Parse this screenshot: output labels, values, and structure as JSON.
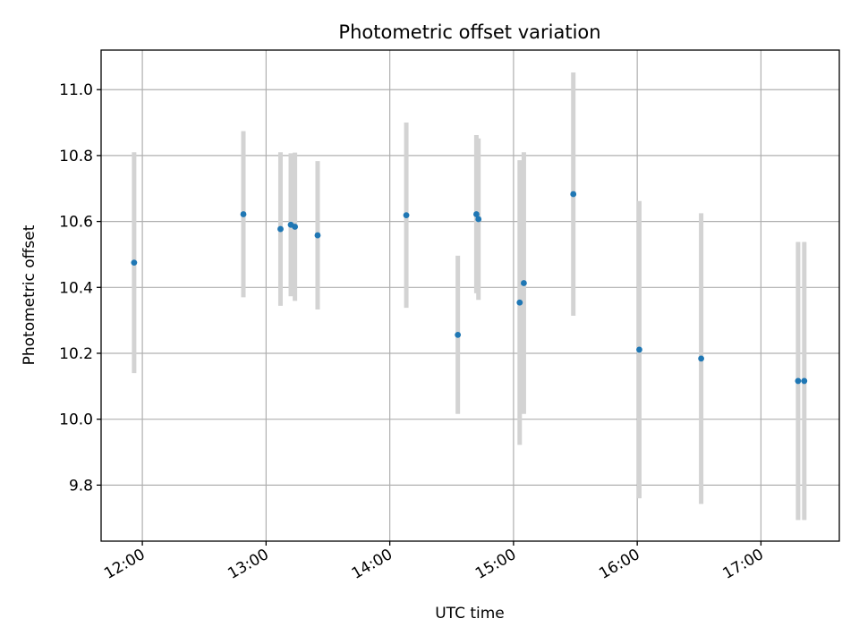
{
  "chart_data": {
    "type": "scatter",
    "title": "Photometric offset variation",
    "xlabel": "UTC time",
    "ylabel": "Photometric offset",
    "x_unit": "UTC time (HH:MM)",
    "xlim": [
      "11:40",
      "17:38"
    ],
    "ylim": [
      9.63,
      11.12
    ],
    "x_ticks": [
      "12:00",
      "13:00",
      "14:00",
      "15:00",
      "16:00",
      "17:00"
    ],
    "y_ticks": [
      9.8,
      10.0,
      10.2,
      10.4,
      10.6,
      10.8,
      11.0
    ],
    "grid": true,
    "colors": {
      "point": "#1f77b4",
      "errorbar": "#d3d3d3"
    },
    "series": [
      {
        "points": [
          {
            "t": "11:56",
            "y": 10.475,
            "err": 0.335
          },
          {
            "t": "12:49",
            "y": 10.622,
            "err": 0.252
          },
          {
            "t": "13:07",
            "y": 10.577,
            "err": 0.233
          },
          {
            "t": "13:12",
            "y": 10.59,
            "err": 0.217
          },
          {
            "t": "13:14",
            "y": 10.584,
            "err": 0.225
          },
          {
            "t": "13:25",
            "y": 10.558,
            "err": 0.225
          },
          {
            "t": "14:08",
            "y": 10.619,
            "err": 0.281
          },
          {
            "t": "14:33",
            "y": 10.256,
            "err": 0.24
          },
          {
            "t": "14:42",
            "y": 10.622,
            "err": 0.24
          },
          {
            "t": "14:43",
            "y": 10.607,
            "err": 0.245
          },
          {
            "t": "15:03",
            "y": 10.354,
            "err": 0.432
          },
          {
            "t": "15:05",
            "y": 10.413,
            "err": 0.397
          },
          {
            "t": "15:29",
            "y": 10.683,
            "err": 0.369
          },
          {
            "t": "16:01",
            "y": 10.211,
            "err": 0.451
          },
          {
            "t": "16:31",
            "y": 10.184,
            "err": 0.441
          },
          {
            "t": "17:18",
            "y": 10.116,
            "err": 0.422
          },
          {
            "t": "17:21",
            "y": 10.116,
            "err": 0.422
          }
        ]
      }
    ]
  }
}
